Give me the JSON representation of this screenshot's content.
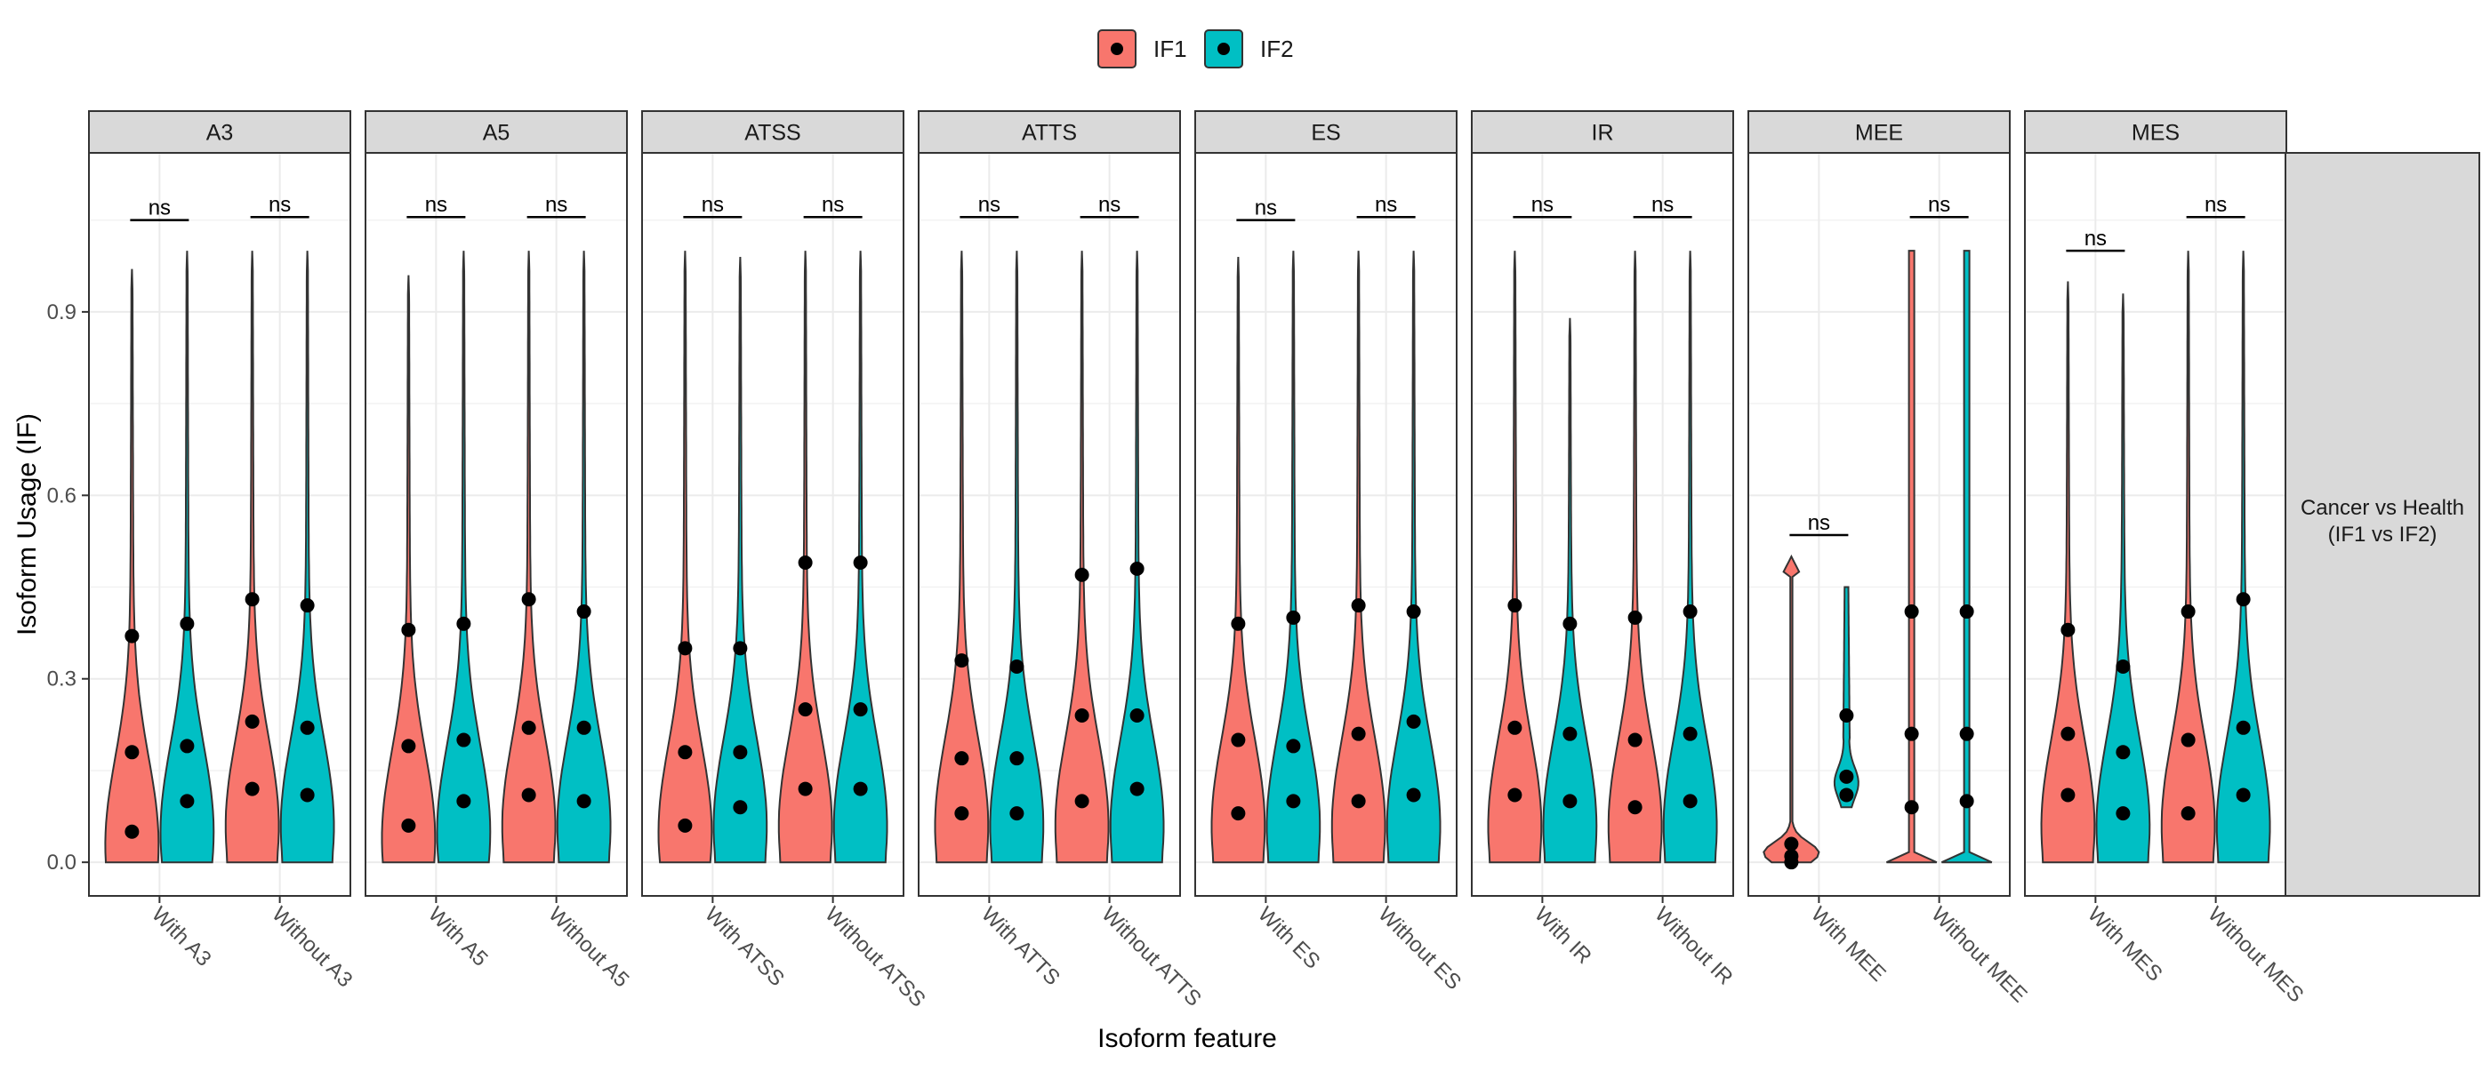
{
  "chart_data": {
    "type": "violin",
    "title": "",
    "xlabel": "Isoform feature",
    "ylabel": "Isoform Usage (IF)",
    "ylim": [
      -0.055,
      1.16
    ],
    "y_ticks": [
      0.0,
      0.3,
      0.6,
      0.9
    ],
    "y_tick_labels": [
      "0.0",
      "0.3",
      "0.6",
      "0.9"
    ],
    "legend": {
      "position": "top",
      "entries": [
        {
          "name": "IF1",
          "color": "#F8766D"
        },
        {
          "name": "IF2",
          "color": "#00BFC4"
        }
      ]
    },
    "row_strip": "Cancer vs Health\n(IF1 vs IF2)",
    "significance_label": "ns",
    "grid": true,
    "facets": [
      {
        "name": "A3",
        "categories": [
          "With A3",
          "Without A3"
        ],
        "violins": {
          "IF1": [
            {
              "top": 0.97,
              "peak": 0.03,
              "q": [
                0.05,
                0.18,
                0.37
              ]
            },
            {
              "top": 1.0,
              "peak": 0.06,
              "q": [
                0.12,
                0.23,
                0.43
              ]
            }
          ],
          "IF2": [
            {
              "top": 1.0,
              "peak": 0.05,
              "q": [
                0.1,
                0.19,
                0.39
              ]
            },
            {
              "top": 1.0,
              "peak": 0.06,
              "q": [
                0.11,
                0.22,
                0.42
              ]
            }
          ]
        },
        "sig": [
          {
            "cat": 0,
            "y": 1.05
          },
          {
            "cat": 1,
            "y": 1.055
          }
        ]
      },
      {
        "name": "A5",
        "categories": [
          "With A5",
          "Without A5"
        ],
        "violins": {
          "IF1": [
            {
              "top": 0.96,
              "peak": 0.04,
              "q": [
                0.06,
                0.19,
                0.38
              ]
            },
            {
              "top": 1.0,
              "peak": 0.06,
              "q": [
                0.11,
                0.22,
                0.43
              ]
            }
          ],
          "IF2": [
            {
              "top": 1.0,
              "peak": 0.05,
              "q": [
                0.1,
                0.2,
                0.39
              ]
            },
            {
              "top": 1.0,
              "peak": 0.06,
              "q": [
                0.1,
                0.22,
                0.41
              ]
            }
          ]
        },
        "sig": [
          {
            "cat": 0,
            "y": 1.055
          },
          {
            "cat": 1,
            "y": 1.055
          }
        ]
      },
      {
        "name": "ATSS",
        "categories": [
          "With ATSS",
          "Without ATSS"
        ],
        "violins": {
          "IF1": [
            {
              "top": 1.0,
              "peak": 0.05,
              "q": [
                0.06,
                0.18,
                0.35
              ]
            },
            {
              "top": 1.0,
              "peak": 0.06,
              "q": [
                0.12,
                0.25,
                0.49
              ]
            }
          ],
          "IF2": [
            {
              "top": 0.99,
              "peak": 0.06,
              "q": [
                0.09,
                0.18,
                0.35
              ]
            },
            {
              "top": 1.0,
              "peak": 0.06,
              "q": [
                0.12,
                0.25,
                0.49
              ]
            }
          ]
        },
        "sig": [
          {
            "cat": 0,
            "y": 1.055
          },
          {
            "cat": 1,
            "y": 1.055
          }
        ]
      },
      {
        "name": "ATTS",
        "categories": [
          "With ATTS",
          "Without ATTS"
        ],
        "violins": {
          "IF1": [
            {
              "top": 1.0,
              "peak": 0.06,
              "q": [
                0.08,
                0.17,
                0.33
              ]
            },
            {
              "top": 1.0,
              "peak": 0.06,
              "q": [
                0.1,
                0.24,
                0.47
              ]
            }
          ],
          "IF2": [
            {
              "top": 1.0,
              "peak": 0.06,
              "q": [
                0.08,
                0.17,
                0.32
              ]
            },
            {
              "top": 1.0,
              "peak": 0.06,
              "q": [
                0.12,
                0.24,
                0.48
              ]
            }
          ]
        },
        "sig": [
          {
            "cat": 0,
            "y": 1.055
          },
          {
            "cat": 1,
            "y": 1.055
          }
        ]
      },
      {
        "name": "ES",
        "categories": [
          "With ES",
          "Without ES"
        ],
        "violins": {
          "IF1": [
            {
              "top": 0.99,
              "peak": 0.06,
              "q": [
                0.08,
                0.2,
                0.39
              ]
            },
            {
              "top": 1.0,
              "peak": 0.06,
              "q": [
                0.1,
                0.21,
                0.42
              ]
            }
          ],
          "IF2": [
            {
              "top": 1.0,
              "peak": 0.06,
              "q": [
                0.1,
                0.19,
                0.4
              ]
            },
            {
              "top": 1.0,
              "peak": 0.06,
              "q": [
                0.11,
                0.23,
                0.41
              ]
            }
          ]
        },
        "sig": [
          {
            "cat": 0,
            "y": 1.05
          },
          {
            "cat": 1,
            "y": 1.055
          }
        ]
      },
      {
        "name": "IR",
        "categories": [
          "With IR",
          "Without IR"
        ],
        "violins": {
          "IF1": [
            {
              "top": 1.0,
              "peak": 0.06,
              "q": [
                0.11,
                0.22,
                0.42
              ]
            },
            {
              "top": 1.0,
              "peak": 0.06,
              "q": [
                0.09,
                0.2,
                0.4
              ]
            }
          ],
          "IF2": [
            {
              "top": 0.89,
              "peak": 0.06,
              "q": [
                0.1,
                0.21,
                0.39
              ]
            },
            {
              "top": 1.0,
              "peak": 0.06,
              "q": [
                0.1,
                0.21,
                0.41
              ]
            }
          ]
        },
        "sig": [
          {
            "cat": 0,
            "y": 1.055
          },
          {
            "cat": 1,
            "y": 1.055
          }
        ]
      },
      {
        "name": "MEE",
        "categories": [
          "With MEE",
          "Without MEE"
        ],
        "violins": {
          "IF1": [
            {
              "top": 0.5,
              "peak": 0.01,
              "q": [
                0.0,
                0.01,
                0.03
              ],
              "shape": "mee_with_if1"
            },
            {
              "top": 1.0,
              "peak": 0.5,
              "q": [
                0.09,
                0.21,
                0.41
              ],
              "shape": "thin"
            }
          ],
          "IF2": [
            {
              "top": 0.45,
              "peak": 0.12,
              "q": [
                0.11,
                0.14,
                0.24
              ],
              "shape": "mee_with_if2"
            },
            {
              "top": 1.0,
              "peak": 0.5,
              "q": [
                0.1,
                0.21,
                0.41
              ],
              "shape": "thin"
            }
          ]
        },
        "sig": [
          {
            "cat": 0,
            "y": 0.535
          },
          {
            "cat": 1,
            "y": 1.055
          }
        ]
      },
      {
        "name": "MES",
        "categories": [
          "With MES",
          "Without MES"
        ],
        "violins": {
          "IF1": [
            {
              "top": 0.95,
              "peak": 0.06,
              "q": [
                0.11,
                0.21,
                0.38
              ]
            },
            {
              "top": 1.0,
              "peak": 0.06,
              "q": [
                0.08,
                0.2,
                0.41
              ]
            }
          ],
          "IF2": [
            {
              "top": 0.93,
              "peak": 0.06,
              "q": [
                0.08,
                0.18,
                0.32
              ]
            },
            {
              "top": 1.0,
              "peak": 0.06,
              "q": [
                0.11,
                0.22,
                0.43
              ]
            }
          ]
        },
        "sig": [
          {
            "cat": 0,
            "y": 1.0
          },
          {
            "cat": 1,
            "y": 1.055
          }
        ]
      }
    ]
  }
}
